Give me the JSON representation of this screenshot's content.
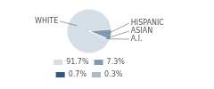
{
  "chart_data": {
    "type": "pie",
    "categories": [
      "WHITE",
      "HISPANIC",
      "ASIAN",
      "A.I."
    ],
    "values": [
      91.7,
      7.3,
      0.7,
      0.3
    ],
    "value_labels": [
      "91.7%",
      "7.3%",
      "0.7%",
      "0.3%"
    ],
    "colors": [
      "#d5dde6",
      "#7e9ab3",
      "#2f5b82",
      "#a9bccd"
    ],
    "legend": "bottom"
  }
}
